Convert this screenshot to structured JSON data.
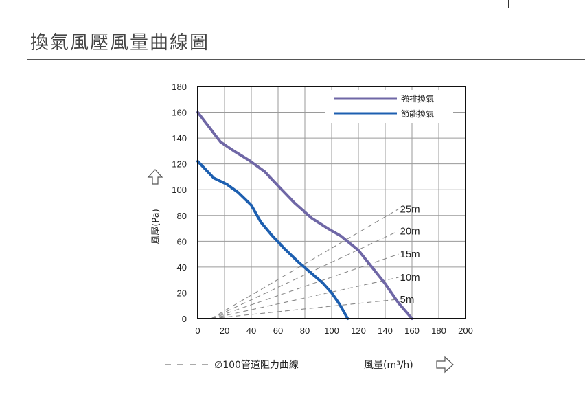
{
  "page": {
    "title": "換氣風壓風量曲線圖"
  },
  "chart_data": {
    "type": "line",
    "title": "換氣風壓風量曲線圖",
    "xlabel": "風量(m³/h)",
    "ylabel": "風壓(Pa)",
    "xlim": [
      0,
      200
    ],
    "ylim": [
      0,
      180
    ],
    "xticks": [
      "0",
      "20",
      "40",
      "60",
      "80",
      "100",
      "120",
      "140",
      "160",
      "180",
      "200"
    ],
    "yticks": [
      "0",
      "20",
      "40",
      "60",
      "80",
      "100",
      "120",
      "140",
      "160",
      "180"
    ],
    "grid": true,
    "legend_position": "top-right",
    "series": [
      {
        "name": "強排換氣",
        "color": "#6f67a6",
        "x": [
          0,
          17,
          27,
          38,
          50,
          60,
          72,
          85,
          97,
          107,
          120,
          130,
          140,
          150,
          160
        ],
        "y": [
          160,
          137,
          130,
          123,
          114,
          103,
          90,
          78,
          70,
          64,
          53,
          40,
          27,
          12,
          0
        ]
      },
      {
        "name": "節能換氣",
        "color": "#1d5fb0",
        "x": [
          0,
          12,
          22,
          30,
          40,
          47,
          55,
          65,
          75,
          85,
          93,
          100,
          106,
          112
        ],
        "y": [
          122,
          109,
          104,
          98,
          88,
          75,
          65,
          54,
          44,
          35,
          28,
          20,
          11,
          0
        ]
      },
      {
        "name": "5m",
        "style": "dashed",
        "color": "#888888",
        "x": [
          10,
          150
        ],
        "y": [
          0,
          15
        ]
      },
      {
        "name": "10m",
        "style": "dashed",
        "color": "#888888",
        "x": [
          10,
          150
        ],
        "y": [
          0,
          32
        ]
      },
      {
        "name": "15m",
        "style": "dashed",
        "color": "#888888",
        "x": [
          10,
          150
        ],
        "y": [
          0,
          50
        ]
      },
      {
        "name": "20m",
        "style": "dashed",
        "color": "#888888",
        "x": [
          10,
          150
        ],
        "y": [
          0,
          68
        ]
      },
      {
        "name": "25m",
        "style": "dashed",
        "color": "#888888",
        "x": [
          10,
          150
        ],
        "y": [
          0,
          85
        ]
      }
    ],
    "legend_entries": [
      "強排換氣",
      "節能換氣"
    ],
    "footer": {
      "pipe_label": "∅100管道阻力曲線",
      "airflow_label": "風量(m³/h)"
    }
  }
}
